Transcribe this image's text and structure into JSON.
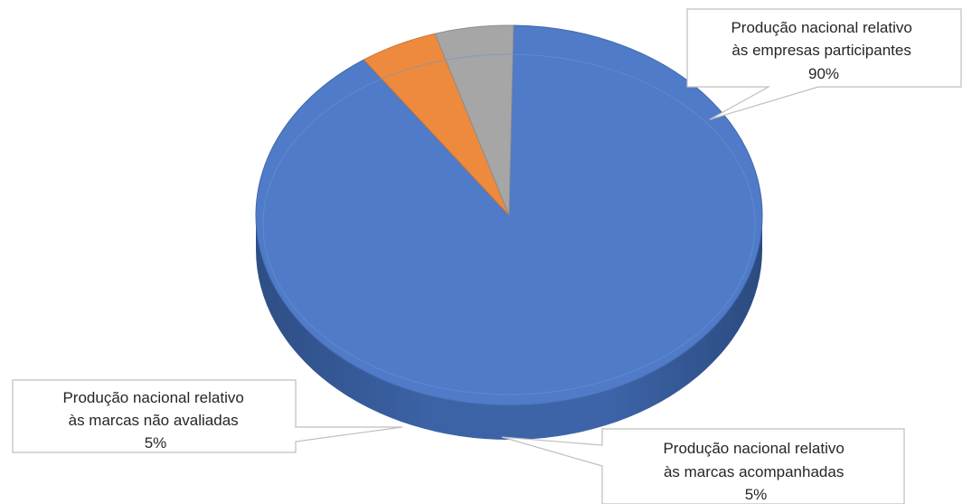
{
  "chart_data": {
    "type": "pie",
    "style": "3d",
    "slices": [
      {
        "label_lines": [
          "Produção nacional relativo",
          "às empresas participantes",
          "90%"
        ],
        "value": 90,
        "color": "#4F7BC8"
      },
      {
        "label_lines": [
          "Produção nacional relativo",
          "às marcas acompanhadas",
          "5%"
        ],
        "value": 5,
        "color": "#ED8A3E"
      },
      {
        "label_lines": [
          "Produção nacional relativo",
          "às marcas não avaliadas",
          "5%"
        ],
        "value": 5,
        "color": "#A6A6A6"
      }
    ]
  }
}
